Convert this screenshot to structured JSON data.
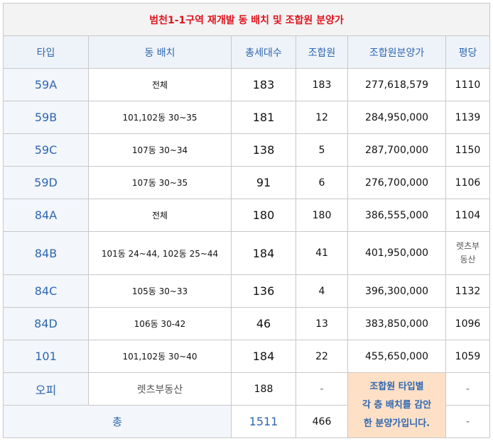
{
  "title": "범천1-1구역 재개발 동 배치 및 조합원 분양가",
  "headers": {
    "type": "타입",
    "location": "동 배치",
    "households": "총세대수",
    "members": "조합원",
    "price": "조합원분양가",
    "per_pyeong": "평당"
  },
  "rows": [
    {
      "type": "59A",
      "location": "전체",
      "households": "183",
      "members": "183",
      "price": "277,618,579",
      "per_pyeong": "1110"
    },
    {
      "type": "59B",
      "location": "101,102동 30~35",
      "households": "181",
      "members": "12",
      "price": "284,950,000",
      "per_pyeong": "1139"
    },
    {
      "type": "59C",
      "location": "107동 30~34",
      "households": "138",
      "members": "5",
      "price": "287,700,000",
      "per_pyeong": "1150"
    },
    {
      "type": "59D",
      "location": "107동 30~35",
      "households": "91",
      "members": "6",
      "price": "276,700,000",
      "per_pyeong": "1106"
    },
    {
      "type": "84A",
      "location": "전체",
      "households": "180",
      "members": "180",
      "price": "386,555,000",
      "per_pyeong": "1104"
    },
    {
      "type": "84B",
      "location": "101동 24~44, 102동 25~44",
      "households": "184",
      "members": "41",
      "price": "401,950,000",
      "per_pyeong_line1": "렛츠부",
      "per_pyeong_line2": "동산"
    },
    {
      "type": "84C",
      "location": "105동 30~33",
      "households": "136",
      "members": "4",
      "price": "396,300,000",
      "per_pyeong": "1132"
    },
    {
      "type": "84D",
      "location": "106동 30-42",
      "households": "46",
      "members": "13",
      "price": "383,850,000",
      "per_pyeong": "1096"
    },
    {
      "type": "101",
      "location": "101,102동 30~40",
      "households": "184",
      "members": "22",
      "price": "455,650,000",
      "per_pyeong": "1059"
    }
  ],
  "officetel": {
    "type": "오피",
    "location": "렛츠부동산",
    "households": "188",
    "members": "-",
    "per_pyeong": "-"
  },
  "total": {
    "label": "총",
    "households": "1511",
    "members": "466",
    "per_pyeong": "-"
  },
  "note": {
    "line1": "조합원 타입별",
    "line2": "각 층 배치를 감안",
    "line3": "한 분양가입니다."
  }
}
